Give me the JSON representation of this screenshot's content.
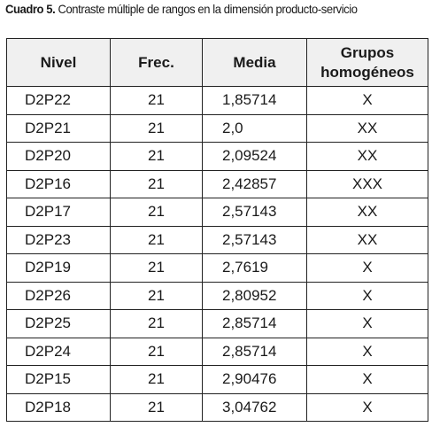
{
  "caption": {
    "lead": "Cuadro 5.",
    "text": "Contraste múltiple de rangos en la dimensión producto-servicio"
  },
  "table": {
    "headers": {
      "nivel": "Nivel",
      "frec": "Frec.",
      "media": "Media",
      "grupos_line1": "Grupos",
      "grupos_line2": "homogéneos"
    },
    "rows": [
      {
        "nivel": "D2P22",
        "frec": "21",
        "media": "1,85714",
        "grupos": "X"
      },
      {
        "nivel": "D2P21",
        "frec": "21",
        "media": "2,0",
        "grupos": "XX"
      },
      {
        "nivel": "D2P20",
        "frec": "21",
        "media": "2,09524",
        "grupos": "XX"
      },
      {
        "nivel": "D2P16",
        "frec": "21",
        "media": "2,42857",
        "grupos": "XXX"
      },
      {
        "nivel": "D2P17",
        "frec": "21",
        "media": "2,57143",
        "grupos": "XX"
      },
      {
        "nivel": "D2P23",
        "frec": "21",
        "media": "2,57143",
        "grupos": "XX"
      },
      {
        "nivel": "D2P19",
        "frec": "21",
        "media": "2,7619",
        "grupos": "X"
      },
      {
        "nivel": "D2P26",
        "frec": "21",
        "media": "2,80952",
        "grupos": "X"
      },
      {
        "nivel": "D2P25",
        "frec": "21",
        "media": "2,85714",
        "grupos": "X"
      },
      {
        "nivel": "D2P24",
        "frec": "21",
        "media": "2,85714",
        "grupos": "X"
      },
      {
        "nivel": "D2P15",
        "frec": "21",
        "media": "2,90476",
        "grupos": "X"
      },
      {
        "nivel": "D2P18",
        "frec": "21",
        "media": "3,04762",
        "grupos": "X"
      }
    ]
  }
}
